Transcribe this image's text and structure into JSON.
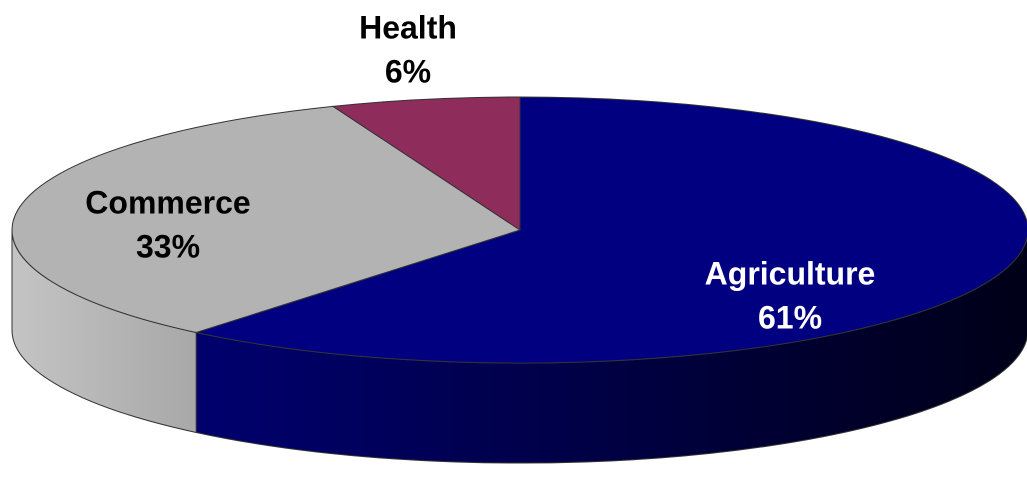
{
  "chart_data": {
    "type": "pie",
    "categories": [
      "Agriculture",
      "Commerce",
      "Health"
    ],
    "values": [
      61,
      33,
      6
    ],
    "value_labels": [
      "61%",
      "33%",
      "6%"
    ],
    "colors": [
      "#000080",
      "#b3b3b3",
      "#8e2d5c"
    ]
  }
}
